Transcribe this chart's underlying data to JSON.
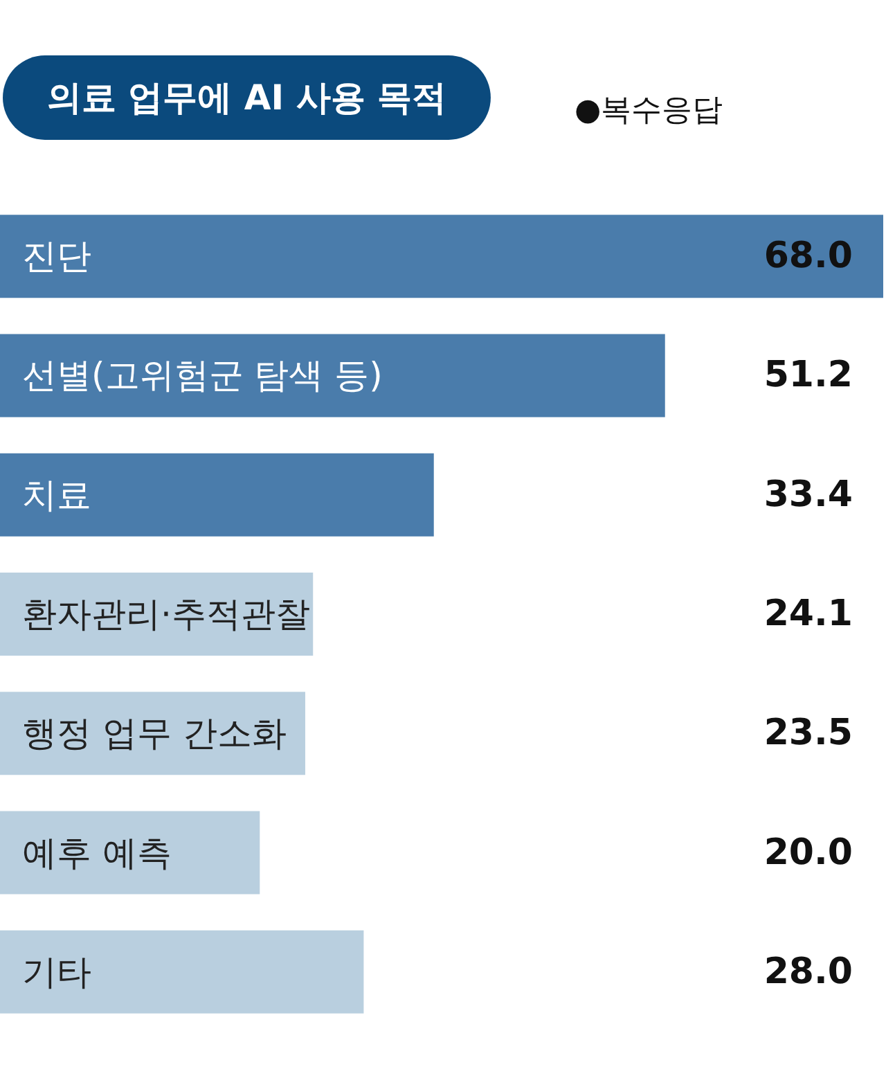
{
  "chart_data": {
    "type": "bar",
    "orientation": "horizontal",
    "title": "의료 업무에 AI 사용 목적",
    "subtitle": "●복수응답",
    "categories": [
      "진단",
      "선별(고위험군 탐색 등)",
      "치료",
      "환자관리·추적관찰",
      "행정 업무 간소화",
      "예후 예측",
      "기타"
    ],
    "values": [
      68.0,
      51.2,
      33.4,
      24.1,
      23.5,
      20.0,
      28.0
    ],
    "colors": [
      "#4a7cab",
      "#4a7cab",
      "#4a7cab",
      "#b9cfdf",
      "#b9cfdf",
      "#b9cfdf",
      "#b9cfdf"
    ],
    "value_labels": [
      "68.0",
      "51.2",
      "33.4",
      "24.1",
      "23.5",
      "20.0",
      "28.0"
    ]
  }
}
